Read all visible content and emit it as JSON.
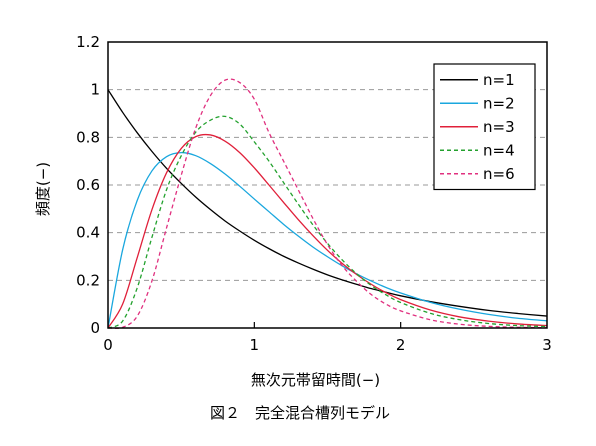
{
  "caption": "図２　完全混合槽列モデル",
  "chart_data": {
    "type": "line",
    "xlabel": "無次元帯留時間(−)",
    "ylabel": "頻度(−)",
    "xlim": [
      0,
      3
    ],
    "ylim": [
      0,
      1.2
    ],
    "x_ticks": [
      0,
      1,
      2,
      3
    ],
    "x_tick_labels": [
      "0",
      "1",
      "2",
      "3"
    ],
    "y_ticks": [
      0,
      0.2,
      0.4,
      0.6,
      0.8,
      1,
      1.2
    ],
    "y_tick_labels": [
      "0",
      "0.2",
      "0.4",
      "0.6",
      "0.8",
      "1",
      "1.2"
    ],
    "grid": "horizontal dashed",
    "legend_position": "top-right",
    "x": [
      0,
      0.1,
      0.2,
      0.3,
      0.4,
      0.5,
      0.6,
      0.7,
      0.8,
      0.9,
      1.0,
      1.1,
      1.2,
      1.3,
      1.4,
      1.5,
      1.6,
      1.7,
      1.8,
      1.9,
      2.0,
      2.2,
      2.4,
      2.6,
      2.8,
      3.0
    ],
    "series": [
      {
        "name": "n=1",
        "color": "#000000",
        "dash": "solid",
        "values": [
          1.0,
          0.905,
          0.819,
          0.741,
          0.67,
          0.607,
          0.549,
          0.497,
          0.449,
          0.407,
          0.368,
          0.333,
          0.301,
          0.273,
          0.247,
          0.223,
          0.202,
          0.183,
          0.165,
          0.15,
          0.135,
          0.111,
          0.091,
          0.074,
          0.061,
          0.05
        ]
      },
      {
        "name": "n=2",
        "color": "#1aa7de",
        "dash": "solid",
        "values": [
          0,
          0.328,
          0.536,
          0.659,
          0.719,
          0.736,
          0.723,
          0.69,
          0.646,
          0.595,
          0.541,
          0.488,
          0.435,
          0.386,
          0.34,
          0.299,
          0.261,
          0.227,
          0.197,
          0.17,
          0.147,
          0.108,
          0.079,
          0.057,
          0.041,
          0.03
        ]
      },
      {
        "name": "n=3",
        "color": "#e0203a",
        "dash": "solid",
        "values": [
          0,
          0.1,
          0.296,
          0.496,
          0.651,
          0.753,
          0.803,
          0.81,
          0.784,
          0.736,
          0.672,
          0.6,
          0.527,
          0.455,
          0.388,
          0.326,
          0.271,
          0.224,
          0.183,
          0.148,
          0.119,
          0.076,
          0.047,
          0.029,
          0.017,
          0.01
        ]
      },
      {
        "name": "n=4",
        "color": "#23a12e",
        "dash": "dashed",
        "values": [
          0,
          0.029,
          0.169,
          0.38,
          0.58,
          0.722,
          0.822,
          0.872,
          0.888,
          0.856,
          0.781,
          0.7,
          0.61,
          0.52,
          0.433,
          0.355,
          0.286,
          0.227,
          0.178,
          0.139,
          0.107,
          0.062,
          0.035,
          0.019,
          0.01,
          0.006
        ]
      },
      {
        "name": "n=6",
        "color": "#e0307f",
        "dash": "dashed",
        "values": [
          0,
          0.003,
          0.05,
          0.197,
          0.42,
          0.64,
          0.84,
          0.975,
          1.04,
          1.03,
          0.96,
          0.82,
          0.7,
          0.58,
          0.46,
          0.35,
          0.262,
          0.195,
          0.14,
          0.1,
          0.072,
          0.035,
          0.016,
          0.007,
          0.003,
          0.001
        ]
      }
    ]
  }
}
